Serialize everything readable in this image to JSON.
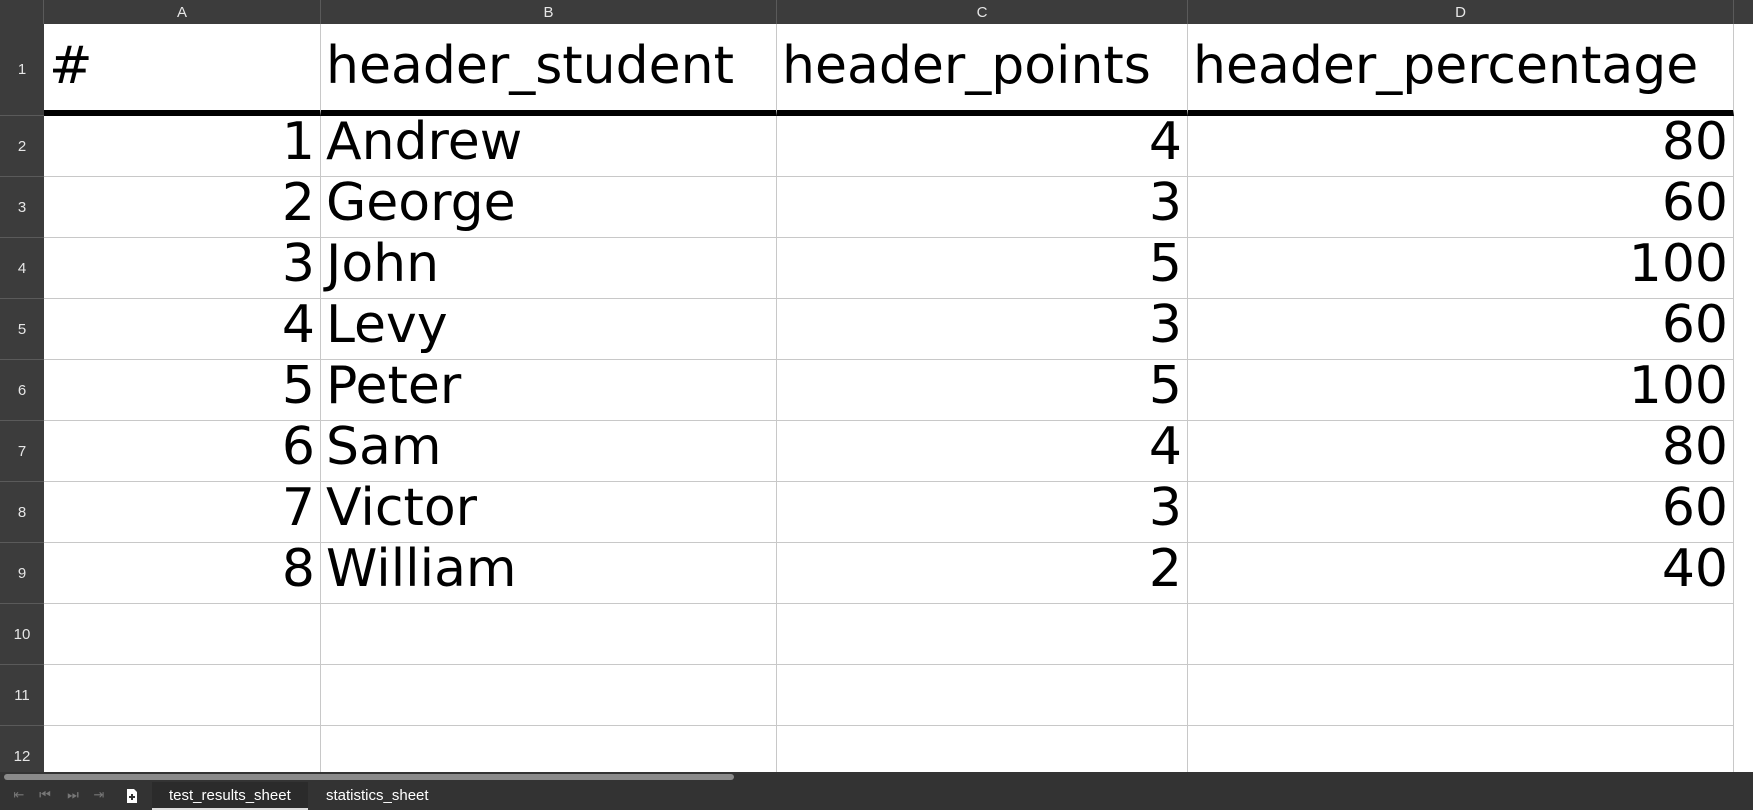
{
  "columns": [
    "A",
    "B",
    "C",
    "D"
  ],
  "row_numbers": [
    "1",
    "2",
    "3",
    "4",
    "5",
    "6",
    "7",
    "8",
    "9",
    "10",
    "11",
    "12"
  ],
  "header": {
    "a": "#",
    "b": "header_student",
    "c": "header_points",
    "d": "header_percentage"
  },
  "rows": [
    {
      "a": "1",
      "b": "Andrew",
      "c": "4",
      "d": "80"
    },
    {
      "a": "2",
      "b": "George",
      "c": "3",
      "d": "60"
    },
    {
      "a": "3",
      "b": "John",
      "c": "5",
      "d": "100"
    },
    {
      "a": "4",
      "b": "Levy",
      "c": "3",
      "d": "60"
    },
    {
      "a": "5",
      "b": "Peter",
      "c": "5",
      "d": "100"
    },
    {
      "a": "6",
      "b": "Sam",
      "c": "4",
      "d": "80"
    },
    {
      "a": "7",
      "b": "Victor",
      "c": "3",
      "d": "60"
    },
    {
      "a": "8",
      "b": "William",
      "c": "2",
      "d": "40"
    }
  ],
  "sheet_nav": {
    "first_icon": "⇤",
    "prev_icon": "⏮",
    "next_icon": "⏭",
    "last_icon": "⇥",
    "add_icon": "+"
  },
  "tabs": [
    {
      "label": "test_results_sheet",
      "active": true
    },
    {
      "label": "statistics_sheet",
      "active": false
    }
  ],
  "colors": {
    "chrome": "#3c3c3c",
    "grid_line": "#c8c8c8",
    "text": "#000000"
  }
}
